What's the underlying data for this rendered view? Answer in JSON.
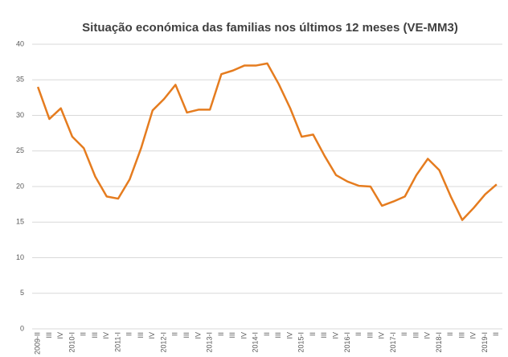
{
  "chart_data": {
    "type": "line",
    "title": "Situação económica das familias nos últimos 12 meses (VE-MM3)",
    "categories": [
      "2009-II",
      "III",
      "IV",
      "2010-I",
      "II",
      "III",
      "IV",
      "2011-I",
      "II",
      "III",
      "IV",
      "2012-I",
      "II",
      "III",
      "IV",
      "2013-I",
      "II",
      "III",
      "IV",
      "2014-I",
      "II",
      "III",
      "IV",
      "2015-I",
      "II",
      "III",
      "IV",
      "2016-I",
      "II",
      "III",
      "IV",
      "2017-I",
      "II",
      "III",
      "IV",
      "2018-I",
      "II",
      "III",
      "IV",
      "2019-I",
      "II"
    ],
    "series": [
      {
        "color": "#e57c1f",
        "values": [
          34,
          29.5,
          31,
          27,
          25.4,
          21.4,
          18.6,
          18.3,
          21,
          25.4,
          30.7,
          32.3,
          34.3,
          30.4,
          30.8,
          30.8,
          35.8,
          36.3,
          37,
          37,
          37.3,
          34.4,
          31,
          27,
          27.3,
          24.3,
          21.6,
          20.7,
          20.1,
          20,
          17.3,
          17.9,
          18.6,
          21.6,
          23.9,
          22.3,
          18.6,
          15.3,
          17,
          18.9,
          20.3
        ]
      }
    ],
    "ylim": [
      0,
      40
    ],
    "yticks": [
      0,
      5,
      10,
      15,
      20,
      25,
      30,
      35,
      40
    ],
    "grid": true
  }
}
